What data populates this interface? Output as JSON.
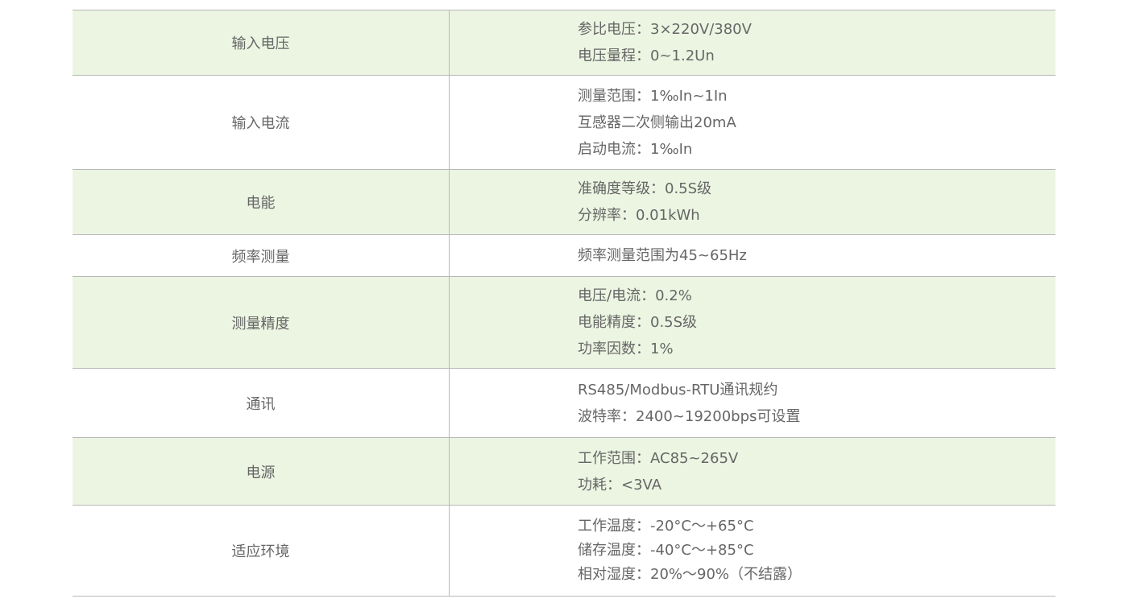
{
  "rows": [
    {
      "label": "输入电压",
      "values": [
        "参比电压：3×220V/380V",
        "电压量程：0~1.2Un"
      ]
    },
    {
      "label": "输入电流",
      "values": [
        "测量范围：1‰In~1In",
        "互感器二次侧输出20mA",
        "启动电流：1‰In"
      ]
    },
    {
      "label": "电能",
      "values": [
        "准确度等级：0.5S级",
        "分辨率：0.01kWh"
      ]
    },
    {
      "label": "频率测量",
      "values": [
        "频率测量范围为45~65Hz"
      ]
    },
    {
      "label": "测量精度",
      "values": [
        "电压/电流：0.2%",
        "电能精度：0.5S级",
        "功率因数：1%"
      ]
    },
    {
      "label": "通讯",
      "values": [
        "RS485/Modbus-RTU通讯规约",
        "波特率：2400~19200bps可设置"
      ]
    },
    {
      "label": "电源",
      "values": [
        "工作范围：AC85~265V",
        "功耗：<3VA"
      ]
    },
    {
      "label": "适应环境",
      "values": [
        "工作温度：-20°C～+65°C",
        "储存温度：-40°C～+85°C",
        "相对湿度：20%～90%（不结露）"
      ]
    }
  ],
  "colors": {
    "stripe": "#ecf5e2",
    "text": "#666666",
    "border": "#b8b8b8"
  }
}
